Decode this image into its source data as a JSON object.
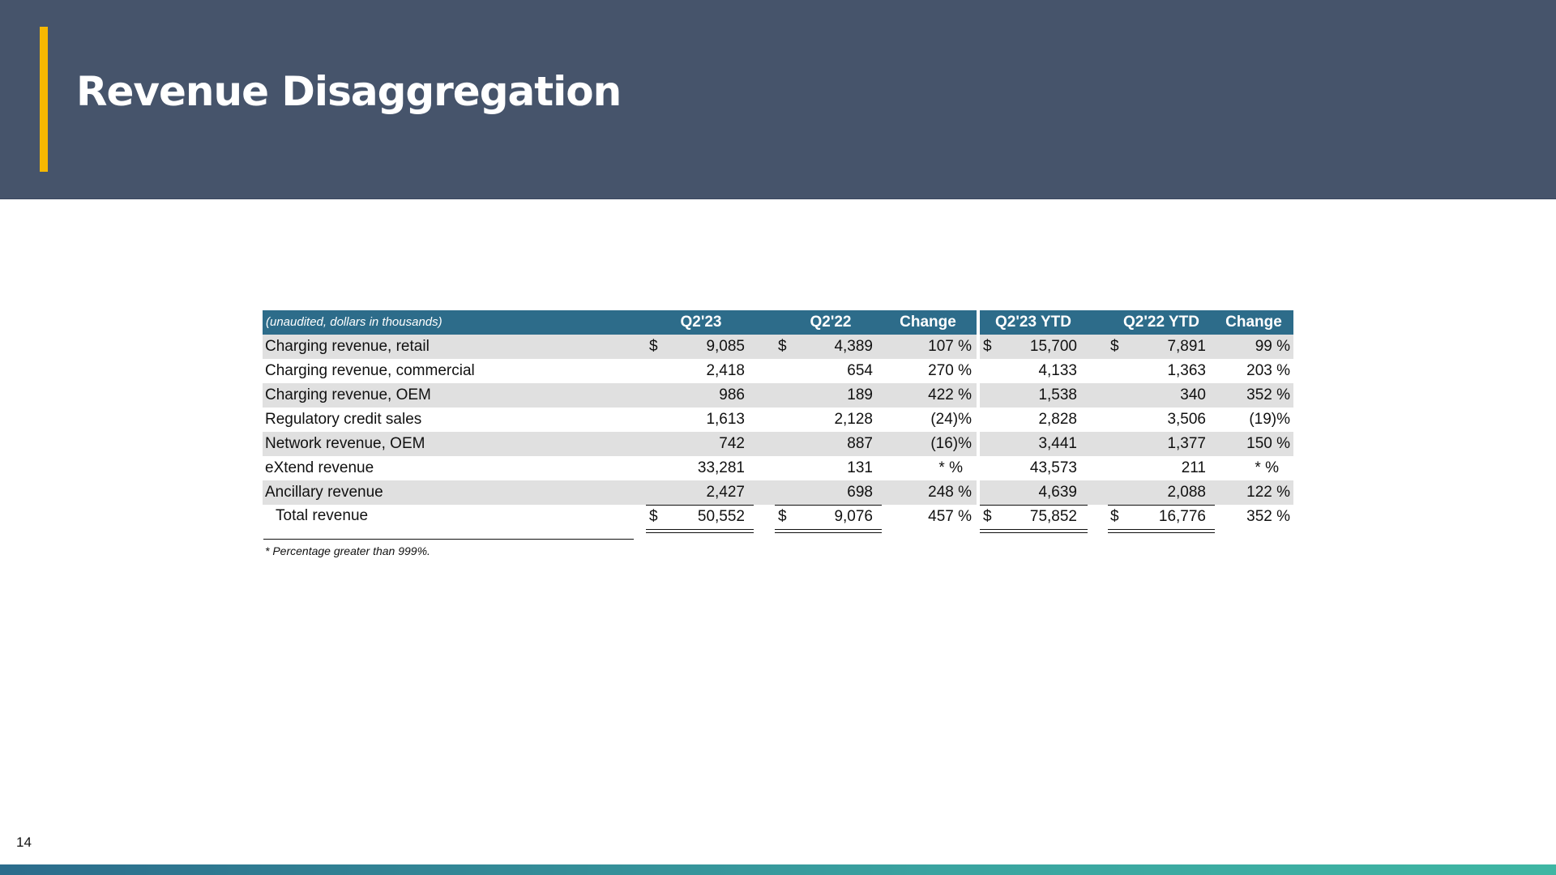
{
  "slide": {
    "title": "Revenue Disaggregation",
    "page_number": "14"
  },
  "table": {
    "note": "(unaudited, dollars in thousands)",
    "headers": [
      "Q2'23",
      "Q2'22",
      "Change",
      "Q2'23 YTD",
      "Q2'22 YTD",
      "Change"
    ],
    "rows": [
      {
        "label": "Charging revenue, retail",
        "q223": "9,085",
        "q222": "4,389",
        "chg": "107 %",
        "ytd23": "15,700",
        "ytd22": "7,891",
        "ytdchg": "99 %"
      },
      {
        "label": "Charging revenue, commercial",
        "q223": "2,418",
        "q222": "654",
        "chg": "270 %",
        "ytd23": "4,133",
        "ytd22": "1,363",
        "ytdchg": "203 %"
      },
      {
        "label": "Charging revenue, OEM",
        "q223": "986",
        "q222": "189",
        "chg": "422 %",
        "ytd23": "1,538",
        "ytd22": "340",
        "ytdchg": "352 %"
      },
      {
        "label": "Regulatory credit sales",
        "q223": "1,613",
        "q222": "2,128",
        "chg": "(24)%",
        "ytd23": "2,828",
        "ytd22": "3,506",
        "ytdchg": "(19)%"
      },
      {
        "label": "Network revenue, OEM",
        "q223": "742",
        "q222": "887",
        "chg": "(16)%",
        "ytd23": "3,441",
        "ytd22": "1,377",
        "ytdchg": "150 %"
      },
      {
        "label": "eXtend revenue",
        "q223": "33,281",
        "q222": "131",
        "chg": "*  %",
        "ytd23": "43,573",
        "ytd22": "211",
        "ytdchg": "*  %"
      },
      {
        "label": "Ancillary revenue",
        "q223": "2,427",
        "q222": "698",
        "chg": "248 %",
        "ytd23": "4,639",
        "ytd22": "2,088",
        "ytdchg": "122 %"
      }
    ],
    "total": {
      "label": "Total revenue",
      "q223": "50,552",
      "q222": "9,076",
      "chg": "457 %",
      "ytd23": "75,852",
      "ytd22": "16,776",
      "ytdchg": "352 %"
    },
    "currency_symbol": "$",
    "footnote": "* Percentage greater than 999%."
  },
  "colors": {
    "header_bg": "#46546b",
    "accent": "#f6b800",
    "table_header": "#2d6c8a",
    "row_shade": "#e0e0e0"
  }
}
